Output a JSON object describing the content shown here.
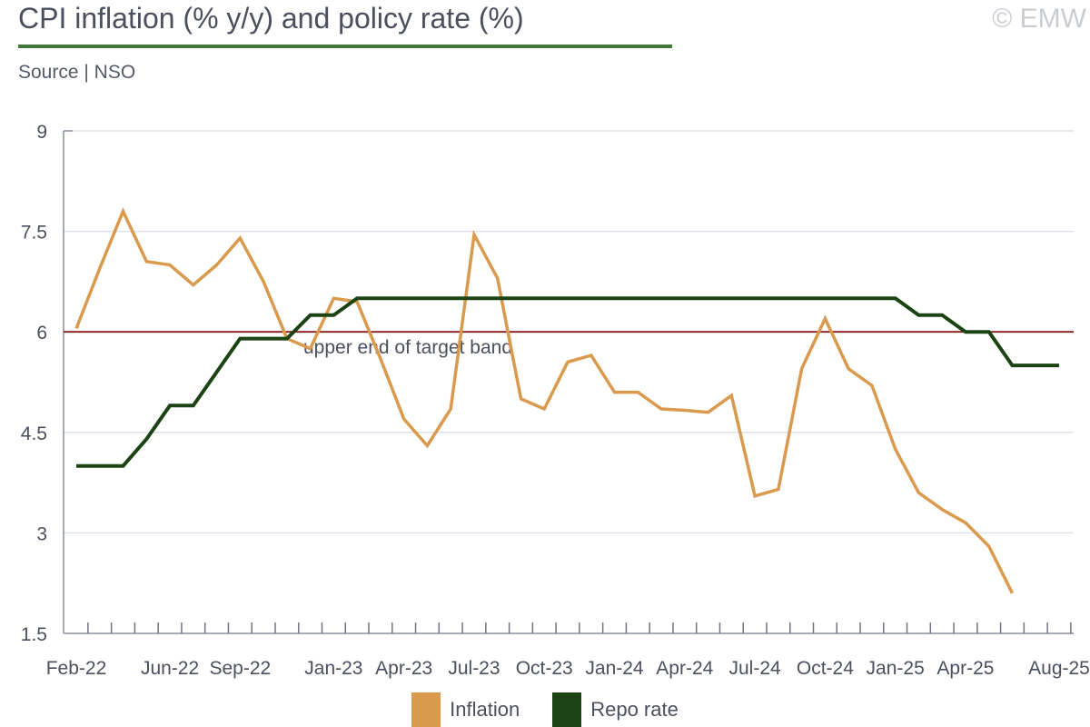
{
  "header": {
    "title": "CPI inflation (% y/y) and policy rate (%)",
    "source": "Source | NSO",
    "copyright": "© EMW"
  },
  "chart_data": {
    "type": "line",
    "title": "CPI inflation (% y/y) and policy rate (%)",
    "xlabel": "",
    "ylabel": "",
    "ylim": [
      1.5,
      9
    ],
    "yticks": [
      1.5,
      3,
      4.5,
      6,
      7.5,
      9
    ],
    "ytick_labels": [
      "1.5",
      "3",
      "4.5",
      "6",
      "7.5",
      "9"
    ],
    "x": [
      "Feb-22",
      "Mar-22",
      "Apr-22",
      "May-22",
      "Jun-22",
      "Jul-22",
      "Aug-22",
      "Sep-22",
      "Oct-22",
      "Nov-22",
      "Dec-22",
      "Jan-23",
      "Feb-23",
      "Mar-23",
      "Apr-23",
      "May-23",
      "Jun-23",
      "Jul-23",
      "Aug-23",
      "Sep-23",
      "Oct-23",
      "Nov-23",
      "Dec-23",
      "Jan-24",
      "Feb-24",
      "Mar-24",
      "Apr-24",
      "May-24",
      "Jun-24",
      "Jul-24",
      "Aug-24",
      "Sep-24",
      "Oct-24",
      "Nov-24",
      "Dec-24",
      "Jan-25",
      "Feb-25",
      "Mar-25",
      "Apr-25",
      "May-25",
      "Jun-25",
      "Jul-25",
      "Aug-25"
    ],
    "x_tick_labels": [
      {
        "i": 0,
        "label": "Feb-22"
      },
      {
        "i": 4,
        "label": "Jun-22"
      },
      {
        "i": 7,
        "label": "Sep-22"
      },
      {
        "i": 11,
        "label": "Jan-23"
      },
      {
        "i": 14,
        "label": "Apr-23"
      },
      {
        "i": 17,
        "label": "Jul-23"
      },
      {
        "i": 20,
        "label": "Oct-23"
      },
      {
        "i": 23,
        "label": "Jan-24"
      },
      {
        "i": 26,
        "label": "Apr-24"
      },
      {
        "i": 29,
        "label": "Jul-24"
      },
      {
        "i": 32,
        "label": "Oct-24"
      },
      {
        "i": 35,
        "label": "Jan-25"
      },
      {
        "i": 38,
        "label": "Apr-25"
      },
      {
        "i": 42,
        "label": "Aug-25"
      }
    ],
    "series": [
      {
        "name": "Inflation",
        "color": "#d99a4e",
        "values": [
          6.05,
          6.95,
          7.8,
          7.05,
          7.0,
          6.7,
          7.0,
          7.4,
          6.75,
          5.9,
          5.75,
          6.5,
          6.45,
          5.6,
          4.7,
          4.3,
          4.85,
          7.45,
          6.8,
          5.0,
          4.85,
          5.55,
          5.65,
          5.1,
          5.1,
          4.85,
          4.83,
          4.8,
          5.05,
          3.55,
          3.65,
          5.45,
          6.2,
          5.45,
          5.2,
          4.25,
          3.6,
          3.35,
          3.15,
          2.8,
          2.1,
          null,
          null
        ]
      },
      {
        "name": "Repo rate",
        "color": "#1b4313",
        "values": [
          4.0,
          4.0,
          4.0,
          4.4,
          4.9,
          4.9,
          5.4,
          5.9,
          5.9,
          5.9,
          6.25,
          6.25,
          6.5,
          6.5,
          6.5,
          6.5,
          6.5,
          6.5,
          6.5,
          6.5,
          6.5,
          6.5,
          6.5,
          6.5,
          6.5,
          6.5,
          6.5,
          6.5,
          6.5,
          6.5,
          6.5,
          6.5,
          6.5,
          6.5,
          6.5,
          6.5,
          6.25,
          6.25,
          6.0,
          6.0,
          5.5,
          5.5,
          5.5
        ]
      }
    ],
    "reference_line": {
      "value": 6,
      "label": "upper end of target band",
      "color": "#8b1a1a"
    },
    "grid": true,
    "legend_position": "bottom-center"
  }
}
